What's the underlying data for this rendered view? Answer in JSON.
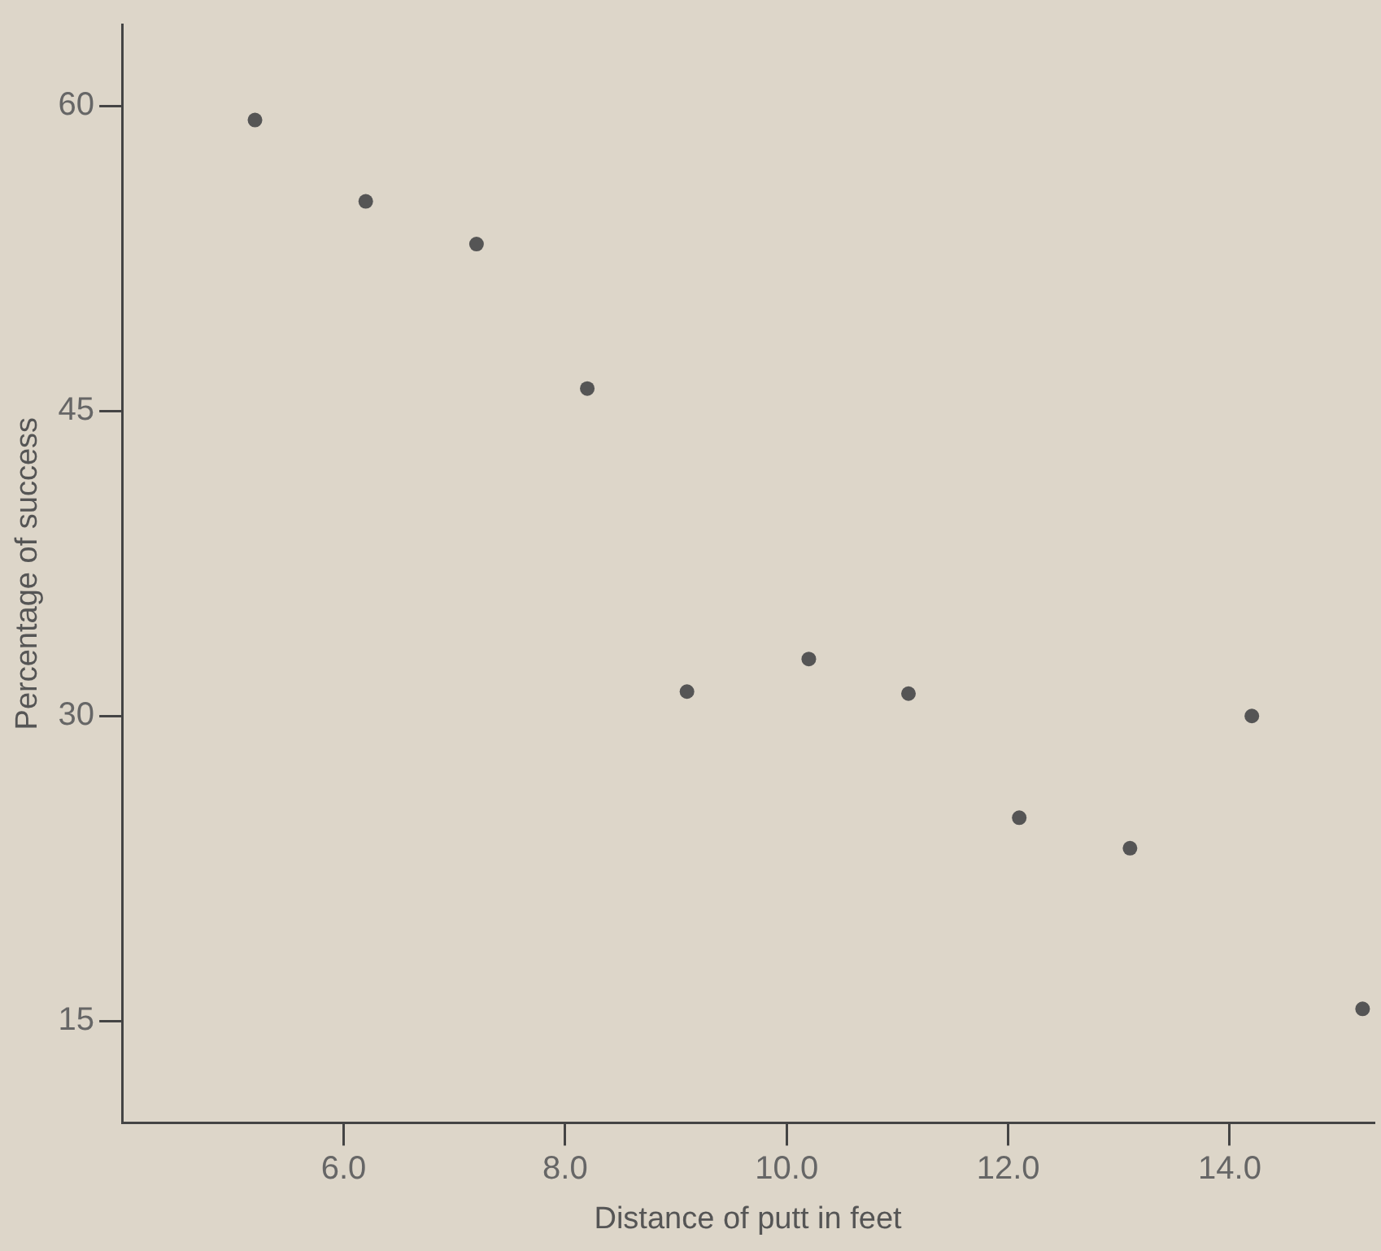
{
  "chart_data": {
    "type": "scatter",
    "xlabel": "Distance of putt in feet",
    "ylabel": "Percentage of success",
    "series": [
      {
        "color": "#555555",
        "x": [
          5.2,
          6.2,
          7.2,
          8.2,
          9.1,
          10.2,
          11.1,
          12.1,
          13.1,
          14.2,
          15.2
        ],
        "values": [
          59.3,
          55.3,
          53.2,
          46.1,
          31.2,
          32.8,
          31.1,
          25.0,
          23.5,
          30.0,
          15.6
        ]
      }
    ],
    "xlim": [
      4,
      15.3
    ],
    "ylim": [
      10,
      64
    ],
    "xticks": [
      {
        "value": 6,
        "label": "6.0"
      },
      {
        "value": 8,
        "label": "8.0"
      },
      {
        "value": 10,
        "label": "10.0"
      },
      {
        "value": 12,
        "label": "12.0"
      },
      {
        "value": 14,
        "label": "14.0"
      }
    ],
    "yticks": [
      15,
      30,
      45,
      60
    ],
    "grid": false,
    "legend": false,
    "marker": "circle"
  }
}
